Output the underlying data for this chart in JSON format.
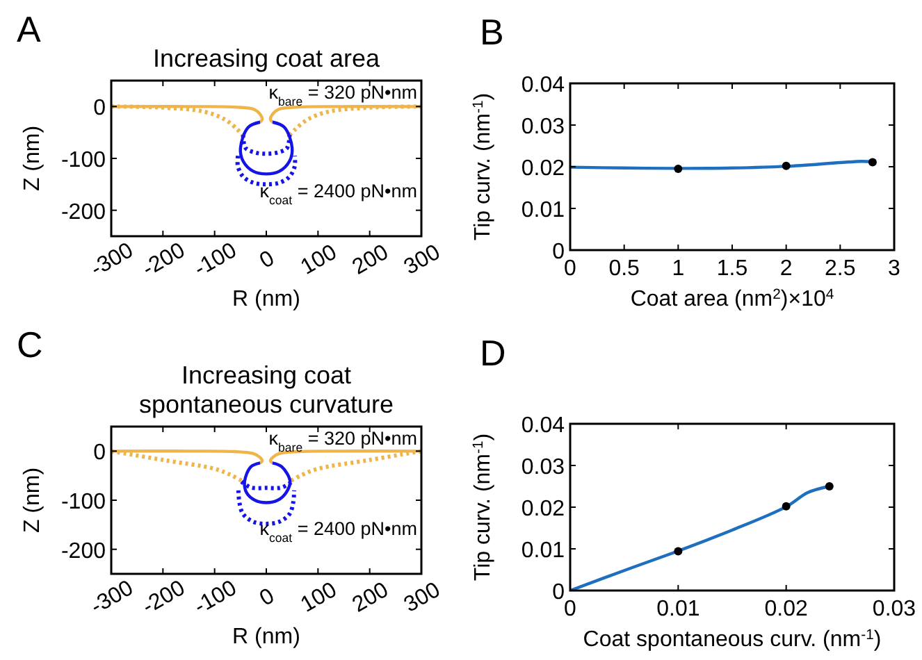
{
  "chart_data": [
    {
      "type": "line",
      "title": "Increasing coat area",
      "xlabel": "R (nm)",
      "ylabel": "Z (nm)",
      "xlim": [
        -300,
        300
      ],
      "ylim": [
        -250,
        50
      ],
      "xticks": [
        -300,
        -200,
        -100,
        0,
        100,
        200,
        300
      ],
      "yticks": [
        -200,
        -100,
        0
      ],
      "grid": false,
      "annotations": [
        "A",
        "κ$_{bare}$ = 320 pN•nm",
        "κ$_{coat}$ = 2400 pN•nm"
      ],
      "series": [
        {
          "type": "line",
          "color": "#efb54a",
          "line_style": "dotted",
          "x": [
            -300,
            -200,
            -120,
            -80,
            -55,
            -45
          ],
          "values": [
            0,
            -2,
            -10,
            -25,
            -45,
            -55
          ]
        },
        {
          "type": "line",
          "color": "#efb54a",
          "line_style": "dotted",
          "x": [
            45,
            55,
            80,
            120,
            200,
            300
          ],
          "values": [
            -55,
            -45,
            -25,
            -10,
            -2,
            0
          ]
        },
        {
          "type": "line",
          "color": "#1414e6",
          "line_style": "dotted",
          "x": [
            -45,
            -40,
            -20,
            0,
            20,
            40,
            45
          ],
          "values": [
            -55,
            -80,
            -89,
            -91,
            -89,
            -80,
            -55
          ]
        },
        {
          "type": "line",
          "color": "#1414e6",
          "line_style": "dotted",
          "x": [
            -55,
            -55,
            -45,
            -25,
            0,
            25,
            45,
            55,
            55
          ],
          "values": [
            -95,
            -115,
            -135,
            -147,
            -150,
            -147,
            -135,
            -115,
            -95
          ]
        },
        {
          "type": "line",
          "color": "#efb54a",
          "line_style": "solid",
          "x": [
            -300,
            -150,
            -60,
            -25,
            -12,
            -8,
            -12
          ],
          "values": [
            0,
            0,
            -1,
            -5,
            -15,
            -25,
            -30
          ]
        },
        {
          "type": "line",
          "color": "#efb54a",
          "line_style": "solid",
          "x": [
            12,
            8,
            12,
            25,
            60,
            150,
            300
          ],
          "values": [
            -30,
            -25,
            -15,
            -5,
            -1,
            0,
            0
          ]
        },
        {
          "type": "line",
          "color": "#1414e6",
          "line_style": "solid",
          "x": [
            -12,
            -35,
            -50,
            -45,
            -25,
            0,
            25,
            45,
            50,
            35,
            12
          ],
          "values": [
            -30,
            -40,
            -80,
            -105,
            -125,
            -130,
            -125,
            -105,
            -80,
            -40,
            -30
          ]
        }
      ]
    },
    {
      "type": "line",
      "xlabel": "Coat area (nm$^{2}$)×10$^{4}$",
      "ylabel": "Tip curv. (nm$^{-1}$)",
      "xlim": [
        0,
        3
      ],
      "ylim": [
        0,
        0.04
      ],
      "xticks": [
        0,
        0.5,
        1,
        1.5,
        2,
        2.5,
        3
      ],
      "yticks": [
        0,
        0.01,
        0.02,
        0.03,
        0.04
      ],
      "grid": false,
      "annotations": [
        "B"
      ],
      "series": [
        {
          "type": "line",
          "color": "#1f6fbf",
          "line_style": "solid",
          "x": [
            0,
            0.5,
            1,
            1.5,
            2,
            2.5,
            2.7,
            2.8
          ],
          "values": [
            0.0199,
            0.0197,
            0.0196,
            0.0197,
            0.0201,
            0.021,
            0.0213,
            0.0212
          ]
        },
        {
          "type": "scatter",
          "color": "#000000",
          "marker": "circle",
          "x": [
            1,
            2,
            2.8
          ],
          "values": [
            0.0195,
            0.0202,
            0.0211
          ]
        }
      ]
    },
    {
      "type": "line",
      "title": "Increasing coat\nspontaneous curvature",
      "xlabel": "R (nm)",
      "ylabel": "Z (nm)",
      "xlim": [
        -300,
        300
      ],
      "ylim": [
        -250,
        50
      ],
      "xticks": [
        -300,
        -200,
        -100,
        0,
        100,
        200,
        300
      ],
      "yticks": [
        -200,
        -100,
        0
      ],
      "grid": false,
      "annotations": [
        "C",
        "κ$_{bare}$ = 320 pN•nm",
        "κ$_{coat}$ = 2400 pN•nm"
      ],
      "series": [
        {
          "type": "line",
          "color": "#efb54a",
          "line_style": "dotted",
          "x": [
            -300,
            -200,
            -100,
            -70,
            -48
          ],
          "values": [
            0,
            -18,
            -36,
            -48,
            -60
          ]
        },
        {
          "type": "line",
          "color": "#efb54a",
          "line_style": "dotted",
          "x": [
            48,
            70,
            100,
            200,
            300
          ],
          "values": [
            -60,
            -48,
            -36,
            -18,
            0
          ]
        },
        {
          "type": "line",
          "color": "#1414e6",
          "line_style": "dotted",
          "x": [
            -48,
            -30,
            0,
            30,
            50
          ],
          "values": [
            -62,
            -74,
            -75,
            -74,
            -62
          ]
        },
        {
          "type": "line",
          "color": "#1414e6",
          "line_style": "dotted",
          "x": [
            -54,
            -52,
            -45,
            -25,
            0,
            25,
            45,
            52,
            54
          ],
          "values": [
            -80,
            -105,
            -128,
            -144,
            -148,
            -144,
            -128,
            -105,
            -80
          ]
        },
        {
          "type": "line",
          "color": "#efb54a",
          "line_style": "solid",
          "x": [
            -300,
            -150,
            -60,
            -25,
            -12,
            -8,
            -12
          ],
          "values": [
            0,
            0,
            -1,
            -5,
            -13,
            -20,
            -24
          ]
        },
        {
          "type": "line",
          "color": "#efb54a",
          "line_style": "solid",
          "x": [
            12,
            8,
            12,
            25,
            60,
            150,
            300
          ],
          "values": [
            -24,
            -20,
            -13,
            -5,
            -1,
            0,
            0
          ]
        },
        {
          "type": "line",
          "color": "#1414e6",
          "line_style": "solid",
          "x": [
            -12,
            -30,
            -42,
            -38,
            -22,
            0,
            22,
            38,
            46,
            30,
            12
          ],
          "values": [
            -24,
            -32,
            -62,
            -85,
            -100,
            -105,
            -100,
            -85,
            -62,
            -32,
            -24
          ]
        }
      ]
    },
    {
      "type": "line",
      "xlabel": "Coat spontaneous curv. (nm$^{-1}$)",
      "ylabel": "Tip curv. (nm$^{-1}$)",
      "xlim": [
        0,
        0.03
      ],
      "ylim": [
        0,
        0.04
      ],
      "xticks": [
        0,
        0.01,
        0.02,
        0.03
      ],
      "yticks": [
        0,
        0.01,
        0.02,
        0.03,
        0.04
      ],
      "grid": false,
      "annotations": [
        "D"
      ],
      "series": [
        {
          "type": "line",
          "color": "#1f6fbf",
          "line_style": "solid",
          "x": [
            0,
            0.005,
            0.01,
            0.015,
            0.02,
            0.022,
            0.024
          ],
          "values": [
            0,
            0.0048,
            0.0095,
            0.0145,
            0.0201,
            0.0235,
            0.025
          ]
        },
        {
          "type": "scatter",
          "color": "#000000",
          "marker": "circle",
          "x": [
            0.01,
            0.02,
            0.024
          ],
          "values": [
            0.0094,
            0.0202,
            0.025
          ]
        }
      ]
    }
  ]
}
